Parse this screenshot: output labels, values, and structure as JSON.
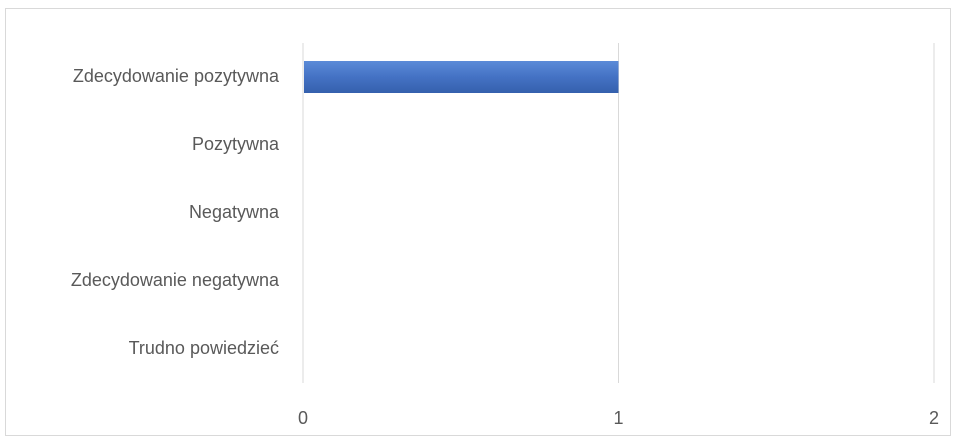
{
  "chart_data": {
    "type": "bar",
    "orientation": "horizontal",
    "categories": [
      "Zdecydowanie pozytywna",
      "Pozytywna",
      "Negatywna",
      "Zdecydowanie negatywna",
      "Trudno powiedzieć"
    ],
    "values": [
      1,
      0,
      0,
      0,
      0
    ],
    "xlim": [
      0,
      2
    ],
    "xticks": [
      "0",
      "1",
      "2"
    ],
    "grid": true,
    "legend": "none",
    "title": "",
    "xlabel": "",
    "ylabel": "",
    "colors": {
      "bar": "#4472c4",
      "grid": "#d9d9d9",
      "text": "#595959"
    }
  }
}
